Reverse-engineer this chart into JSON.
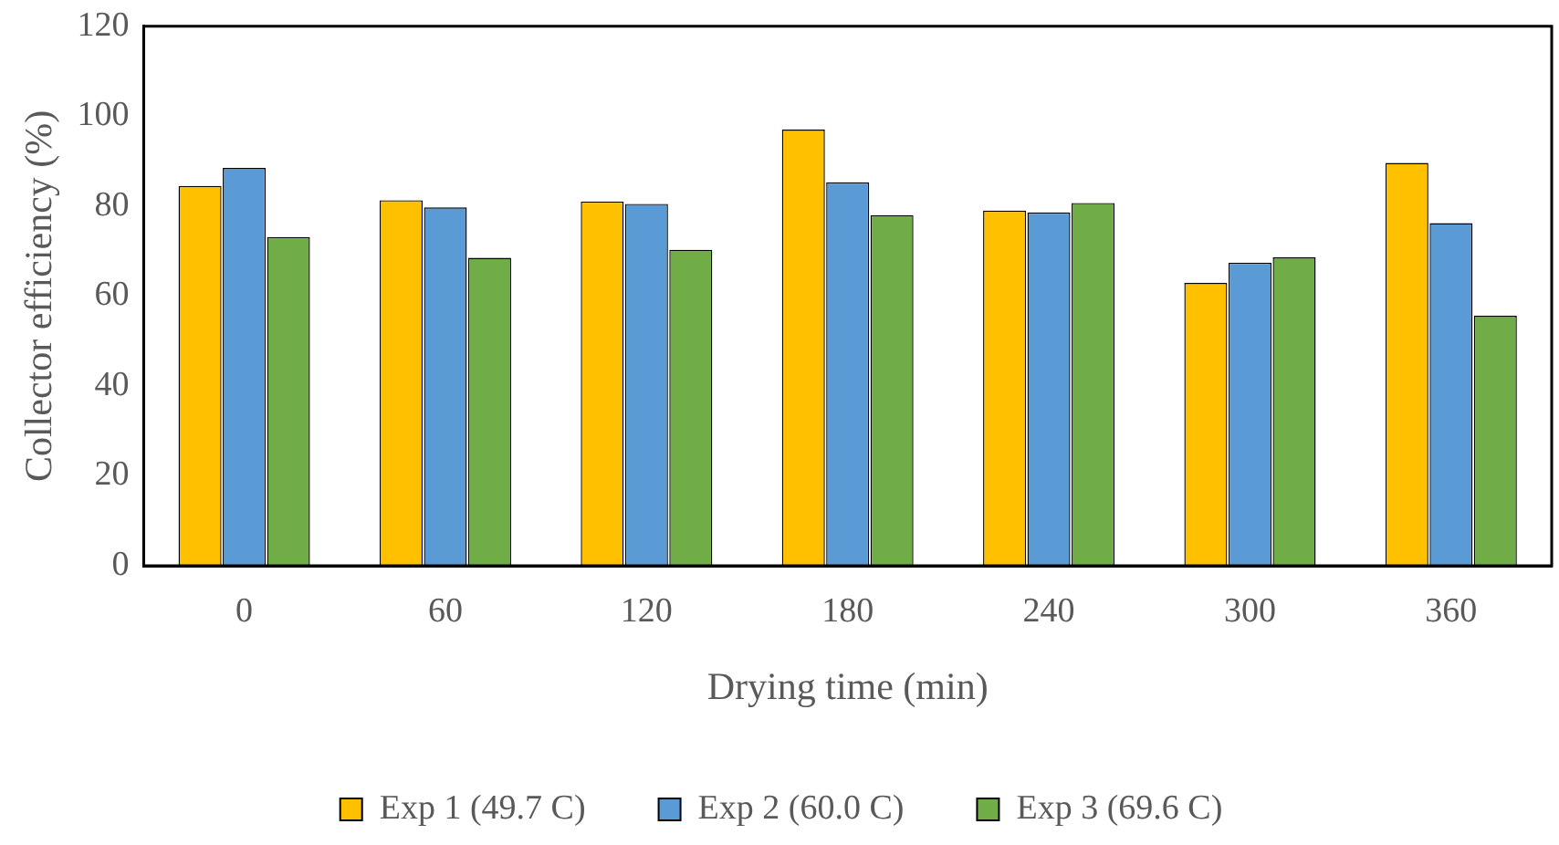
{
  "chart_data": {
    "type": "bar",
    "xlabel": "Drying time (min)",
    "ylabel": "Collector efficiency (%)",
    "categories": [
      "0",
      "60",
      "120",
      "180",
      "240",
      "300",
      "360"
    ],
    "series": [
      {
        "name": "Exp 1 (49.7 C)",
        "color": "#ffc000",
        "values": [
          84.5,
          81.3,
          81.0,
          97.0,
          79.0,
          62.9,
          89.6
        ]
      },
      {
        "name": "Exp 2 (60.0 C)",
        "color": "#5b9bd5",
        "values": [
          88.5,
          79.7,
          80.5,
          85.3,
          78.6,
          67.4,
          76.2
        ]
      },
      {
        "name": "Exp 3 (69.6 C)",
        "color": "#70ad47",
        "values": [
          73.1,
          68.5,
          70.3,
          78.0,
          80.7,
          68.6,
          55.6
        ]
      }
    ],
    "ylim": [
      0,
      120
    ],
    "yticks": [
      0,
      20,
      40,
      60,
      80,
      100,
      120
    ],
    "grid": false,
    "legend": "bottom"
  }
}
